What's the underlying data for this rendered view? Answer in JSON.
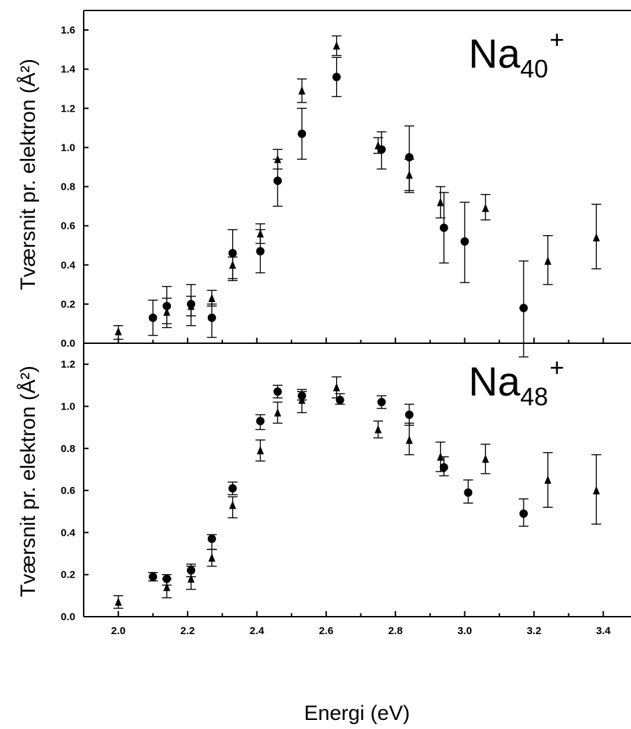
{
  "chart_data": [
    {
      "type": "scatter",
      "panel": "top",
      "label": {
        "base": "Na",
        "sub": "40",
        "sup": "+"
      },
      "ylabel": "Tværsnit pr. elektron (Å²)",
      "xlim": [
        1.9,
        3.48
      ],
      "ylim": [
        0,
        1.7
      ],
      "xticks": [
        "2.0",
        "2.2",
        "2.4",
        "2.6",
        "2.8",
        "3.0",
        "3.2",
        "3.4"
      ],
      "yticks": [
        "0.0",
        "0.2",
        "0.4",
        "0.6",
        "0.8",
        "1.0",
        "1.2",
        "1.4",
        "1.6"
      ],
      "series": [
        {
          "marker": "circle",
          "points": [
            {
              "x": 2.1,
              "y": 0.13,
              "lo": 0.04,
              "hi": 0.22
            },
            {
              "x": 2.14,
              "y": 0.19,
              "lo": 0.1,
              "hi": 0.23
            },
            {
              "x": 2.21,
              "y": 0.2,
              "lo": 0.09,
              "hi": 0.3
            },
            {
              "x": 2.27,
              "y": 0.13,
              "lo": 0.03,
              "hi": 0.2
            },
            {
              "x": 2.33,
              "y": 0.46,
              "lo": 0.33,
              "hi": 0.58
            },
            {
              "x": 2.41,
              "y": 0.47,
              "lo": 0.36,
              "hi": 0.58
            },
            {
              "x": 2.46,
              "y": 0.83,
              "lo": 0.7,
              "hi": 0.94
            },
            {
              "x": 2.53,
              "y": 1.07,
              "lo": 0.94,
              "hi": 1.2
            },
            {
              "x": 2.63,
              "y": 1.36,
              "lo": 1.26,
              "hi": 1.46
            },
            {
              "x": 2.76,
              "y": 0.99,
              "lo": 0.89,
              "hi": 1.08
            },
            {
              "x": 2.84,
              "y": 0.95,
              "lo": 0.78,
              "hi": 1.11
            },
            {
              "x": 2.94,
              "y": 0.59,
              "lo": 0.41,
              "hi": 0.77
            },
            {
              "x": 3.0,
              "y": 0.52,
              "lo": 0.31,
              "hi": 0.72
            },
            {
              "x": 3.17,
              "y": 0.18,
              "lo": -0.07,
              "hi": 0.42
            }
          ]
        },
        {
          "marker": "triangle",
          "points": [
            {
              "x": 2.0,
              "y": 0.06,
              "lo": 0.02,
              "hi": 0.09
            },
            {
              "x": 2.14,
              "y": 0.16,
              "lo": 0.08,
              "hi": 0.29
            },
            {
              "x": 2.21,
              "y": 0.19,
              "lo": 0.14,
              "hi": 0.24
            },
            {
              "x": 2.27,
              "y": 0.23,
              "lo": 0.19,
              "hi": 0.27
            },
            {
              "x": 2.33,
              "y": 0.4,
              "lo": 0.32,
              "hi": 0.44
            },
            {
              "x": 2.41,
              "y": 0.56,
              "lo": 0.51,
              "hi": 0.61
            },
            {
              "x": 2.46,
              "y": 0.94,
              "lo": 0.89,
              "hi": 0.99
            },
            {
              "x": 2.53,
              "y": 1.29,
              "lo": 1.23,
              "hi": 1.35
            },
            {
              "x": 2.63,
              "y": 1.52,
              "lo": 1.47,
              "hi": 1.57
            },
            {
              "x": 2.75,
              "y": 1.01,
              "lo": 0.97,
              "hi": 1.05
            },
            {
              "x": 2.84,
              "y": 0.86,
              "lo": 0.77,
              "hi": 0.94
            },
            {
              "x": 2.93,
              "y": 0.72,
              "lo": 0.64,
              "hi": 0.8
            },
            {
              "x": 3.06,
              "y": 0.69,
              "lo": 0.63,
              "hi": 0.76
            },
            {
              "x": 3.24,
              "y": 0.42,
              "lo": 0.3,
              "hi": 0.55
            },
            {
              "x": 3.38,
              "y": 0.54,
              "lo": 0.38,
              "hi": 0.71
            }
          ]
        }
      ]
    },
    {
      "type": "scatter",
      "panel": "bottom",
      "label": {
        "base": "Na",
        "sub": "48",
        "sup": "+"
      },
      "xlabel": "Energi (eV)",
      "ylabel": "Tværsnit pr. elektron (Å²)",
      "xlim": [
        1.9,
        3.48
      ],
      "ylim": [
        0,
        1.3
      ],
      "xticks": [
        "2.0",
        "2.2",
        "2.4",
        "2.6",
        "2.8",
        "3.0",
        "3.2",
        "3.4"
      ],
      "yticks": [
        "0.0",
        "0.2",
        "0.4",
        "0.6",
        "0.8",
        "1.0",
        "1.2"
      ],
      "series": [
        {
          "marker": "circle",
          "points": [
            {
              "x": 2.1,
              "y": 0.19,
              "lo": 0.17,
              "hi": 0.21
            },
            {
              "x": 2.14,
              "y": 0.18,
              "lo": 0.15,
              "hi": 0.2
            },
            {
              "x": 2.21,
              "y": 0.22,
              "lo": 0.19,
              "hi": 0.25
            },
            {
              "x": 2.27,
              "y": 0.37,
              "lo": 0.32,
              "hi": 0.39
            },
            {
              "x": 2.33,
              "y": 0.61,
              "lo": 0.58,
              "hi": 0.64
            },
            {
              "x": 2.41,
              "y": 0.93,
              "lo": 0.89,
              "hi": 0.96
            },
            {
              "x": 2.46,
              "y": 1.07,
              "lo": 1.04,
              "hi": 1.1
            },
            {
              "x": 2.53,
              "y": 1.05,
              "lo": 1.03,
              "hi": 1.07
            },
            {
              "x": 2.64,
              "y": 1.03,
              "lo": 1.01,
              "hi": 1.06
            },
            {
              "x": 2.76,
              "y": 1.02,
              "lo": 0.99,
              "hi": 1.05
            },
            {
              "x": 2.84,
              "y": 0.96,
              "lo": 0.91,
              "hi": 1.01
            },
            {
              "x": 2.94,
              "y": 0.71,
              "lo": 0.67,
              "hi": 0.76
            },
            {
              "x": 3.01,
              "y": 0.59,
              "lo": 0.54,
              "hi": 0.65
            },
            {
              "x": 3.17,
              "y": 0.49,
              "lo": 0.43,
              "hi": 0.56
            }
          ]
        },
        {
          "marker": "triangle",
          "points": [
            {
              "x": 2.0,
              "y": 0.07,
              "lo": 0.04,
              "hi": 0.1
            },
            {
              "x": 2.14,
              "y": 0.14,
              "lo": 0.09,
              "hi": 0.18
            },
            {
              "x": 2.21,
              "y": 0.18,
              "lo": 0.13,
              "hi": 0.24
            },
            {
              "x": 2.27,
              "y": 0.28,
              "lo": 0.24,
              "hi": 0.32
            },
            {
              "x": 2.33,
              "y": 0.53,
              "lo": 0.47,
              "hi": 0.57
            },
            {
              "x": 2.41,
              "y": 0.79,
              "lo": 0.74,
              "hi": 0.84
            },
            {
              "x": 2.46,
              "y": 0.97,
              "lo": 0.92,
              "hi": 1.02
            },
            {
              "x": 2.53,
              "y": 1.03,
              "lo": 0.97,
              "hi": 1.08
            },
            {
              "x": 2.63,
              "y": 1.09,
              "lo": 1.04,
              "hi": 1.14
            },
            {
              "x": 2.75,
              "y": 0.89,
              "lo": 0.85,
              "hi": 0.93
            },
            {
              "x": 2.84,
              "y": 0.84,
              "lo": 0.77,
              "hi": 0.92
            },
            {
              "x": 2.93,
              "y": 0.76,
              "lo": 0.69,
              "hi": 0.83
            },
            {
              "x": 3.06,
              "y": 0.75,
              "lo": 0.68,
              "hi": 0.82
            },
            {
              "x": 3.24,
              "y": 0.65,
              "lo": 0.52,
              "hi": 0.78
            },
            {
              "x": 3.38,
              "y": 0.6,
              "lo": 0.44,
              "hi": 0.77
            }
          ]
        }
      ]
    }
  ]
}
